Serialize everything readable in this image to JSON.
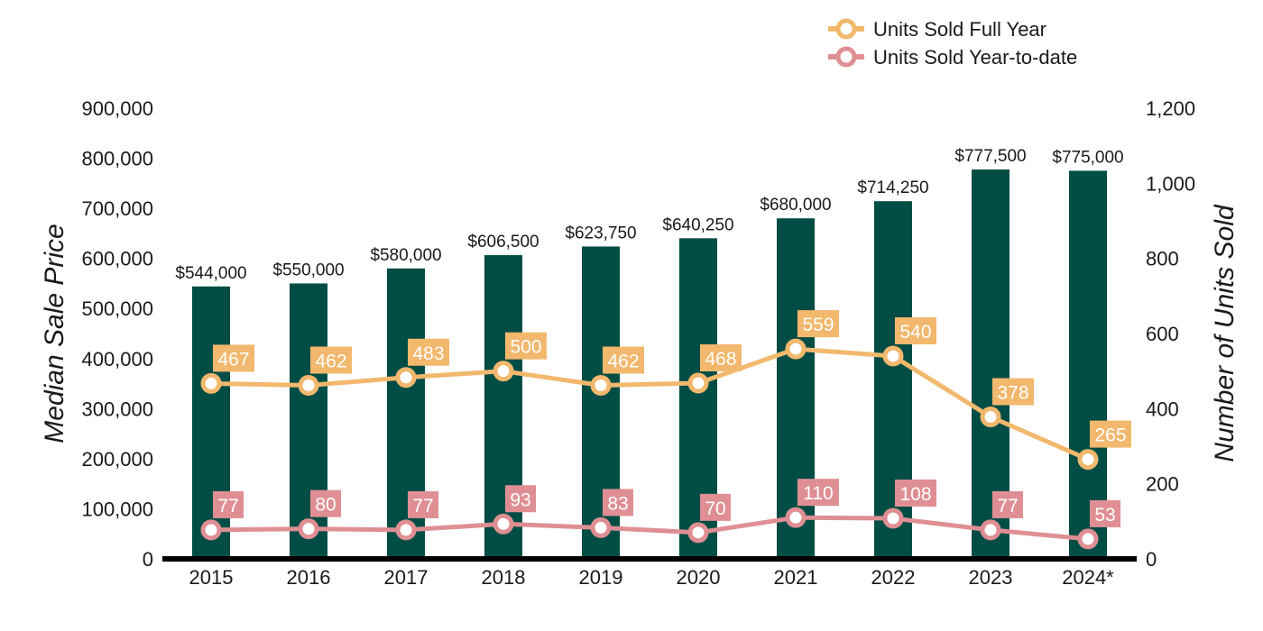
{
  "chart_data": {
    "type": "bar",
    "categories": [
      "2015",
      "2016",
      "2017",
      "2018",
      "2019",
      "2020",
      "2021",
      "2022",
      "2023",
      "2024*"
    ],
    "bar_series": {
      "values": [
        544000,
        550000,
        580000,
        606500,
        623750,
        640250,
        680000,
        714250,
        777500,
        775000
      ],
      "labels": [
        "$544,000",
        "$550,000",
        "$580,000",
        "$606,500",
        "$623,750",
        "$640,250",
        "$680,000",
        "$714,250",
        "$777,500",
        "$775,000"
      ]
    },
    "line_series": [
      {
        "name": "Units Sold Full Year",
        "type": "line",
        "axis": "right",
        "values": [
          467,
          462,
          483,
          500,
          462,
          468,
          559,
          540,
          378,
          265
        ]
      },
      {
        "name": "Units Sold Year-to-date",
        "type": "line",
        "axis": "right",
        "values": [
          77,
          80,
          77,
          93,
          83,
          70,
          110,
          108,
          77,
          53
        ]
      }
    ],
    "ylabel": "Median Sale Price",
    "y2label": "Number of Units Sold",
    "ylim": [
      0,
      900000
    ],
    "y2lim": [
      0,
      1200
    ],
    "yticks": [
      "0",
      "100,000",
      "200,000",
      "300,000",
      "400,000",
      "500,000",
      "600,000",
      "700,000",
      "800,000",
      "900,000"
    ],
    "y2ticks": [
      "0",
      "200",
      "400",
      "600",
      "800",
      "1,000",
      "1,200"
    ],
    "legend_position": "top-right",
    "grid": false
  },
  "colors": {
    "bar": "#004d45",
    "full_year": "#f2b86d",
    "ytd": "#df8f93",
    "axis_line": "#000000"
  }
}
